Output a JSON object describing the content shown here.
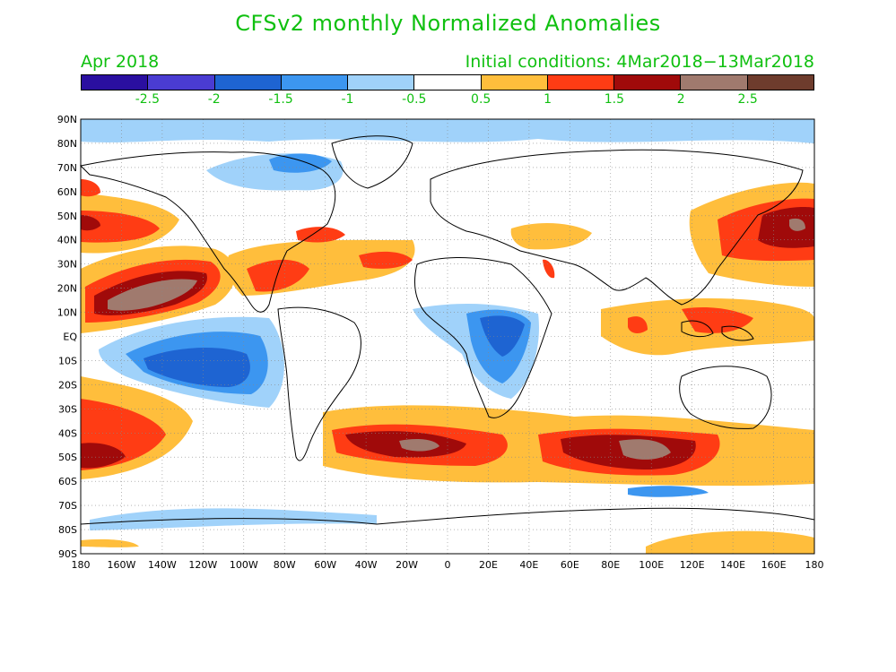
{
  "title": "CFSv2 monthly Normalized Anomalies",
  "month_label": "Apr 2018",
  "initial_conditions": "Initial conditions: 4Mar2018−13Mar2018",
  "colorbar": {
    "colors": [
      "#2a0fa0",
      "#4a3cd2",
      "#1e64d2",
      "#3c96f0",
      "#a0d2fa",
      "#ffffff",
      "#ffbe3c",
      "#ff3c14",
      "#a00a0a",
      "#a07a6e",
      "#6e3c2d"
    ],
    "labels": [
      "-2.5",
      "-2",
      "-1.5",
      "-1",
      "-0.5",
      "0.5",
      "1",
      "1.5",
      "2",
      "2.5"
    ]
  },
  "map": {
    "lat_labels": [
      "90N",
      "80N",
      "70N",
      "60N",
      "50N",
      "40N",
      "30N",
      "20N",
      "10N",
      "EQ",
      "10S",
      "20S",
      "30S",
      "40S",
      "50S",
      "60S",
      "70S",
      "80S",
      "90S"
    ],
    "lon_labels": [
      "180",
      "160W",
      "140W",
      "120W",
      "100W",
      "80W",
      "60W",
      "40W",
      "20W",
      "0",
      "20E",
      "40E",
      "60E",
      "80E",
      "100E",
      "120E",
      "140E",
      "160E",
      "180"
    ],
    "features": [
      {
        "name": "arctic-cool",
        "level": "-0.5"
      },
      {
        "name": "tropical-pacific-cool",
        "level": "-1.5"
      },
      {
        "name": "east-africa-cool",
        "level": "-1.5"
      },
      {
        "name": "ne-pacific-warm",
        "level": "2.5"
      },
      {
        "name": "nw-pacific-warm",
        "level": "2"
      },
      {
        "name": "southern-ocean-warm",
        "level": "2.5"
      },
      {
        "name": "atlantic-warm",
        "level": "1"
      },
      {
        "name": "maritime-continent-warm",
        "level": "1.5"
      }
    ]
  }
}
